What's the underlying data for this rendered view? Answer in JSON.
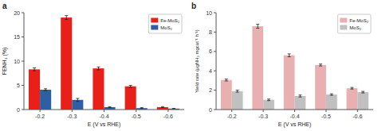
{
  "chart_data": [
    {
      "type": "bar",
      "title": "a",
      "categories": [
        "-0.2",
        "-0.3",
        "-0.4",
        "-0.5",
        "-0.6"
      ],
      "series": [
        {
          "name": "Fe-MoS₂",
          "color": "#e8201a",
          "values": [
            8.3,
            19.0,
            8.5,
            4.8,
            0.5
          ],
          "errors": [
            0.3,
            0.4,
            0.3,
            0.2,
            0.1
          ]
        },
        {
          "name": "MoS₂",
          "color": "#2e5fa3",
          "values": [
            4.1,
            2.0,
            0.5,
            0.3,
            0.2
          ],
          "errors": [
            0.2,
            0.3,
            0.1,
            0.1,
            0.05
          ]
        }
      ],
      "xlabel": "E (V vs RHE)",
      "ylabel": "FENH₃ (%)",
      "ylim": [
        0,
        20
      ],
      "yticks": [
        0,
        5,
        10,
        15,
        20
      ],
      "legend": "upper right"
    },
    {
      "type": "bar",
      "title": "b",
      "categories": [
        "-0.2",
        "-0.3",
        "-0.4",
        "-0.5",
        "-0.6"
      ],
      "series": [
        {
          "name": "Fe-MoS₂",
          "color": "#e8b0b0",
          "values": [
            3.05,
            8.6,
            5.6,
            4.6,
            2.2
          ],
          "errors": [
            0.1,
            0.2,
            0.15,
            0.1,
            0.08
          ]
        },
        {
          "name": "MoS₂",
          "color": "#c0c0c0",
          "values": [
            1.9,
            1.0,
            1.4,
            1.55,
            1.8
          ],
          "errors": [
            0.1,
            0.08,
            0.1,
            0.08,
            0.08
          ]
        }
      ],
      "xlabel": "E (V vs RHE)",
      "ylabel": "Yield rate (μgNH₃ mgcat⁻¹ h⁻¹)",
      "ylim": [
        0,
        10
      ],
      "yticks": [
        0,
        2,
        4,
        6,
        8,
        10
      ],
      "legend": "upper right"
    }
  ]
}
